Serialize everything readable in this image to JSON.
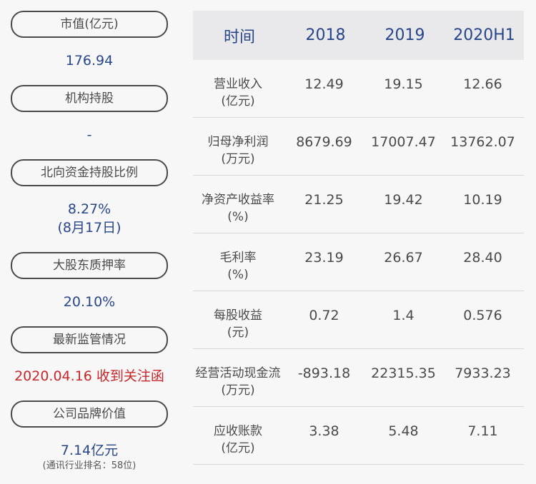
{
  "left": {
    "market_cap_label": "市值(亿元)",
    "market_cap_value": "176.94",
    "institution_label": "机构持股",
    "institution_value": "-",
    "northbound_label": "北向资金持股比例",
    "northbound_value": "8.27%",
    "northbound_date": "(8月17日)",
    "pledge_label": "大股东质押率",
    "pledge_value": "20.10%",
    "regulation_label": "最新监管情况",
    "regulation_value": "2020.04.16 收到关注函",
    "brand_label": "公司品牌价值",
    "brand_value": "7.14亿元",
    "brand_rank": "(通讯行业排名：58位)"
  },
  "table": {
    "headers": [
      "时间",
      "2018",
      "2019",
      "2020H1"
    ],
    "rows": [
      {
        "label1": "营业收入",
        "label2": "(亿元)",
        "values": [
          "12.49",
          "19.15",
          "12.66"
        ]
      },
      {
        "label1": "归母净利润",
        "label2": "(万元)",
        "values": [
          "8679.69",
          "17007.47",
          "13762.07"
        ]
      },
      {
        "label1": "净资产收益率",
        "label2": "(%)",
        "values": [
          "21.25",
          "19.42",
          "10.19"
        ]
      },
      {
        "label1": "毛利率",
        "label2": "(%)",
        "values": [
          "23.19",
          "26.67",
          "28.40"
        ]
      },
      {
        "label1": "每股收益",
        "label2": "(元)",
        "values": [
          "0.72",
          "1.4",
          "0.576"
        ]
      },
      {
        "label1": "经营活动现金流",
        "label2": "(万元)",
        "values": [
          "-893.18",
          "22315.35",
          "7933.23"
        ]
      },
      {
        "label1": "应收账款",
        "label2": "(亿元)",
        "values": [
          "3.38",
          "5.48",
          "7.11"
        ]
      }
    ]
  }
}
